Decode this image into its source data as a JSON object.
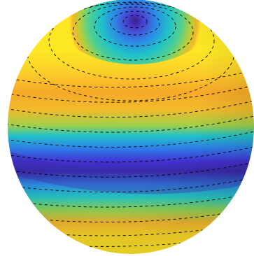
{
  "figure": {
    "subject": "sphere-surface-colormap",
    "colormap": [
      "#3b1f8e",
      "#4a3fd0",
      "#2d8ae6",
      "#1fc2c9",
      "#53d08e",
      "#b7cf3a",
      "#f7a928",
      "#fde725"
    ],
    "contour_style": "dashed-black",
    "background": "#ffffff"
  }
}
